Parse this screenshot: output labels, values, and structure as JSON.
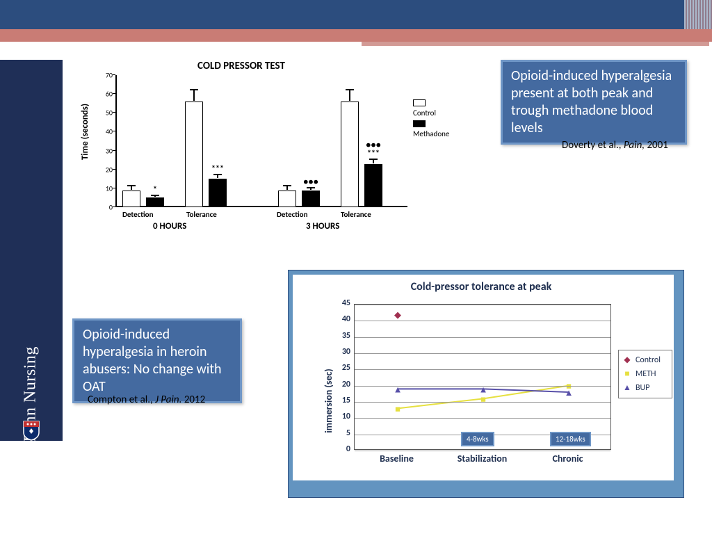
{
  "sidebar": {
    "label": "Penn Nursing"
  },
  "callout1": {
    "text": "Opioid-induced hyperalgesia present at both peak and trough methadone blood levels",
    "citation_prefix": "Doverty et al., ",
    "citation_ital": "Pain,",
    "citation_suffix": " 2001"
  },
  "callout2": {
    "text": "Opioid-induced hyperalgesia in heroin abusers: No change with OAT",
    "citation_prefix": "Compton et al., ",
    "citation_ital": "J Pain.",
    "citation_suffix": " 2012"
  },
  "chart1": {
    "type": "bar",
    "title": "COLD PRESSOR TEST",
    "ylabel": "Time (seconds)",
    "ylim": [
      0,
      70
    ],
    "ytick_step": 10,
    "group_labels": [
      "Detection",
      "Tolerance",
      "Detection",
      "Tolerance"
    ],
    "hour_labels": [
      "0 HOURS",
      "3 HOURS"
    ],
    "legend": [
      "Control",
      "Methadone"
    ],
    "bars": [
      {
        "x": 10,
        "value": 9,
        "err": 2,
        "filled": false
      },
      {
        "x": 44,
        "value": 5,
        "err": 1,
        "filled": true,
        "sig": "*"
      },
      {
        "x": 100,
        "value": 56,
        "err": 6,
        "filled": false
      },
      {
        "x": 134,
        "value": 15,
        "err": 2,
        "filled": true,
        "sig": "***"
      },
      {
        "x": 234,
        "value": 9,
        "err": 2,
        "filled": false
      },
      {
        "x": 268,
        "value": 9,
        "err": 1,
        "filled": true,
        "sig": "●●●"
      },
      {
        "x": 324,
        "value": 56,
        "err": 6,
        "filled": false
      },
      {
        "x": 358,
        "value": 23,
        "err": 2,
        "filled": true,
        "sig": "●●●",
        "sig2": "***"
      }
    ],
    "colors": {
      "open": "#ffffff",
      "filled": "#000000",
      "border": "#000000"
    }
  },
  "chart2": {
    "type": "line",
    "title": "Cold-pressor tolerance at peak",
    "ylabel": "immersion (sec)",
    "ylim": [
      0,
      45
    ],
    "ytick_step": 5,
    "categories": [
      "Baseline",
      "Stabilization",
      "Chronic"
    ],
    "tags": [
      "4-8wks",
      "12-18wks"
    ],
    "series": [
      {
        "name": "Control",
        "color": "#a03050",
        "marker": "diamond",
        "values": [
          42,
          null,
          null
        ]
      },
      {
        "name": "METH",
        "color": "#e6e040",
        "marker": "square",
        "values": [
          13,
          16,
          20
        ]
      },
      {
        "name": "BUP",
        "color": "#5850a8",
        "marker": "triangle",
        "values": [
          19,
          19,
          18
        ]
      }
    ],
    "grid_color": "#999999",
    "background_color": "#ffffff"
  }
}
